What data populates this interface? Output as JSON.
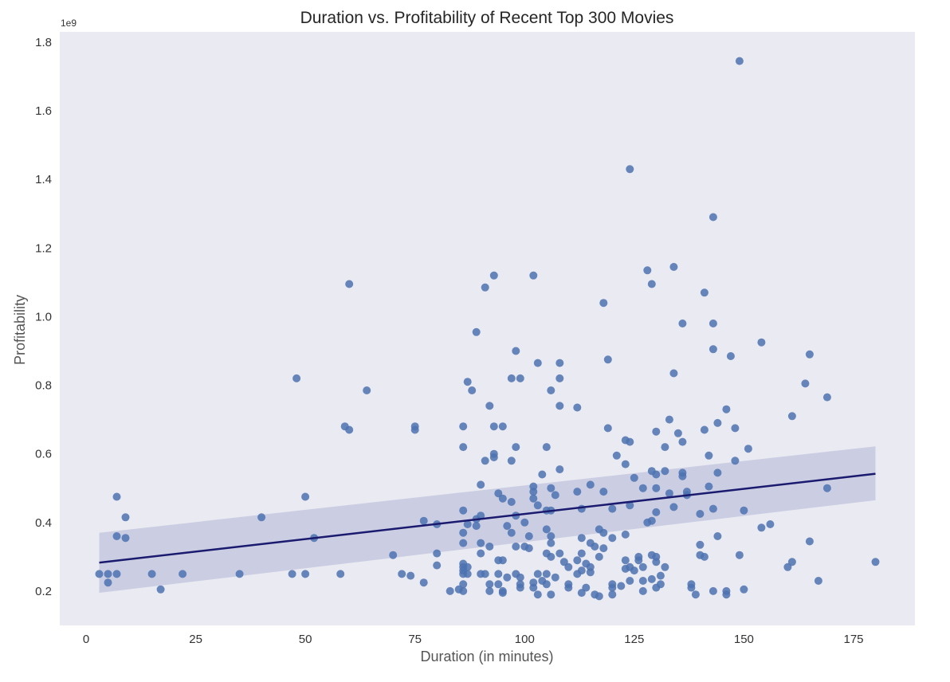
{
  "chart_data": {
    "type": "scatter",
    "title": "Duration vs. Profitability of Recent Top 300 Movies",
    "xlabel": "Duration (in minutes)",
    "ylabel": "Profitability",
    "y_offset_label": "1e9",
    "xlim": [
      -6,
      189
    ],
    "ylim": [
      0.1,
      1.83
    ],
    "x_ticks": [
      0,
      25,
      50,
      75,
      100,
      125,
      150,
      175
    ],
    "x_tick_labels": [
      "0",
      "25",
      "50",
      "75",
      "100",
      "125",
      "150",
      "175"
    ],
    "y_ticks": [
      0.2,
      0.4,
      0.6,
      0.8,
      1.0,
      1.2,
      1.4,
      1.6,
      1.8
    ],
    "y_tick_labels": [
      "0.2",
      "0.4",
      "0.6",
      "0.8",
      "1.0",
      "1.2",
      "1.4",
      "1.6",
      "1.8"
    ],
    "grid": false,
    "colors": {
      "background": "#eaeaf2",
      "points": "#4c72b0",
      "regression_line": "#1a1a6e",
      "confidence_band": "#c5c8e0"
    },
    "regression": {
      "x": [
        3,
        180
      ],
      "y": [
        0.283,
        0.542
      ],
      "ci_lower": [
        0.195,
        0.465
      ],
      "ci_upper": [
        0.37,
        0.622
      ]
    },
    "series": [
      {
        "points": [
          [
            3,
            0.25
          ],
          [
            5,
            0.25
          ],
          [
            5,
            0.225
          ],
          [
            7,
            0.25
          ],
          [
            7,
            0.36
          ],
          [
            7,
            0.475
          ],
          [
            9,
            0.355
          ],
          [
            9,
            0.415
          ],
          [
            15,
            0.25
          ],
          [
            17,
            0.205
          ],
          [
            22,
            0.25
          ],
          [
            35,
            0.25
          ],
          [
            40,
            0.415
          ],
          [
            47,
            0.25
          ],
          [
            48,
            0.82
          ],
          [
            50,
            0.25
          ],
          [
            50,
            0.475
          ],
          [
            52,
            0.355
          ],
          [
            58,
            0.25
          ],
          [
            59,
            0.68
          ],
          [
            60,
            0.67
          ],
          [
            60,
            1.095
          ],
          [
            64,
            0.785
          ],
          [
            70,
            0.305
          ],
          [
            72,
            0.25
          ],
          [
            74,
            0.245
          ],
          [
            75,
            0.67
          ],
          [
            75,
            0.68
          ],
          [
            77,
            0.225
          ],
          [
            77,
            0.405
          ],
          [
            80,
            0.31
          ],
          [
            80,
            0.275
          ],
          [
            80,
            0.395
          ],
          [
            83,
            0.2
          ],
          [
            85,
            0.205
          ],
          [
            86,
            0.2
          ],
          [
            86,
            0.22
          ],
          [
            86,
            0.25
          ],
          [
            86,
            0.26
          ],
          [
            86,
            0.27
          ],
          [
            86,
            0.28
          ],
          [
            86,
            0.34
          ],
          [
            86,
            0.37
          ],
          [
            86,
            0.435
          ],
          [
            86,
            0.62
          ],
          [
            86,
            0.68
          ],
          [
            87,
            0.81
          ],
          [
            87,
            0.25
          ],
          [
            87,
            0.27
          ],
          [
            87,
            0.395
          ],
          [
            88,
            0.785
          ],
          [
            89,
            0.955
          ],
          [
            89,
            0.39
          ],
          [
            89,
            0.41
          ],
          [
            90,
            0.25
          ],
          [
            90,
            0.31
          ],
          [
            90,
            0.34
          ],
          [
            90,
            0.42
          ],
          [
            90,
            0.51
          ],
          [
            91,
            0.58
          ],
          [
            91,
            1.085
          ],
          [
            91,
            0.25
          ],
          [
            92,
            0.2
          ],
          [
            92,
            0.33
          ],
          [
            92,
            0.22
          ],
          [
            92,
            0.74
          ],
          [
            93,
            0.68
          ],
          [
            93,
            0.6
          ],
          [
            93,
            0.59
          ],
          [
            93,
            1.12
          ],
          [
            94,
            0.25
          ],
          [
            94,
            0.22
          ],
          [
            94,
            0.29
          ],
          [
            94,
            0.485
          ],
          [
            95,
            0.195
          ],
          [
            95,
            0.2
          ],
          [
            95,
            0.68
          ],
          [
            95,
            0.47
          ],
          [
            95,
            0.29
          ],
          [
            96,
            0.24
          ],
          [
            96,
            0.39
          ],
          [
            97,
            0.82
          ],
          [
            97,
            0.58
          ],
          [
            97,
            0.46
          ],
          [
            97,
            0.37
          ],
          [
            98,
            0.9
          ],
          [
            98,
            0.62
          ],
          [
            98,
            0.42
          ],
          [
            98,
            0.33
          ],
          [
            98,
            0.25
          ],
          [
            99,
            0.82
          ],
          [
            99,
            0.22
          ],
          [
            99,
            0.21
          ],
          [
            99,
            0.24
          ],
          [
            100,
            0.4
          ],
          [
            100,
            0.33
          ],
          [
            101,
            0.36
          ],
          [
            101,
            0.325
          ],
          [
            102,
            0.505
          ],
          [
            102,
            0.47
          ],
          [
            102,
            0.49
          ],
          [
            102,
            1.12
          ],
          [
            102,
            0.21
          ],
          [
            102,
            0.225
          ],
          [
            103,
            0.865
          ],
          [
            103,
            0.45
          ],
          [
            103,
            0.25
          ],
          [
            103,
            0.19
          ],
          [
            104,
            0.54
          ],
          [
            104,
            0.23
          ],
          [
            105,
            0.62
          ],
          [
            105,
            0.435
          ],
          [
            105,
            0.38
          ],
          [
            105,
            0.31
          ],
          [
            105,
            0.22
          ],
          [
            105,
            0.25
          ],
          [
            106,
            0.785
          ],
          [
            106,
            0.5
          ],
          [
            106,
            0.435
          ],
          [
            106,
            0.36
          ],
          [
            106,
            0.34
          ],
          [
            106,
            0.3
          ],
          [
            106,
            0.19
          ],
          [
            107,
            0.24
          ],
          [
            107,
            0.48
          ],
          [
            108,
            0.865
          ],
          [
            108,
            0.82
          ],
          [
            108,
            0.74
          ],
          [
            108,
            0.555
          ],
          [
            108,
            0.31
          ],
          [
            109,
            0.285
          ],
          [
            110,
            0.22
          ],
          [
            110,
            0.21
          ],
          [
            110,
            0.27
          ],
          [
            112,
            0.735
          ],
          [
            112,
            0.49
          ],
          [
            112,
            0.29
          ],
          [
            112,
            0.25
          ],
          [
            113,
            0.44
          ],
          [
            113,
            0.355
          ],
          [
            113,
            0.31
          ],
          [
            113,
            0.26
          ],
          [
            113,
            0.195
          ],
          [
            114,
            0.28
          ],
          [
            114,
            0.21
          ],
          [
            115,
            0.51
          ],
          [
            115,
            0.34
          ],
          [
            115,
            0.27
          ],
          [
            115,
            0.255
          ],
          [
            116,
            0.33
          ],
          [
            116,
            0.19
          ],
          [
            117,
            0.38
          ],
          [
            117,
            0.3
          ],
          [
            117,
            0.185
          ],
          [
            118,
            1.04
          ],
          [
            118,
            0.49
          ],
          [
            118,
            0.37
          ],
          [
            118,
            0.325
          ],
          [
            119,
            0.875
          ],
          [
            119,
            0.675
          ],
          [
            120,
            0.44
          ],
          [
            120,
            0.355
          ],
          [
            120,
            0.22
          ],
          [
            120,
            0.21
          ],
          [
            120,
            0.19
          ],
          [
            121,
            0.595
          ],
          [
            122,
            0.215
          ],
          [
            123,
            0.64
          ],
          [
            123,
            0.57
          ],
          [
            123,
            0.365
          ],
          [
            123,
            0.29
          ],
          [
            123,
            0.265
          ],
          [
            124,
            1.43
          ],
          [
            124,
            0.635
          ],
          [
            124,
            0.45
          ],
          [
            124,
            0.27
          ],
          [
            124,
            0.23
          ],
          [
            125,
            0.53
          ],
          [
            125,
            0.26
          ],
          [
            126,
            0.3
          ],
          [
            126,
            0.29
          ],
          [
            127,
            0.5
          ],
          [
            127,
            0.27
          ],
          [
            127,
            0.23
          ],
          [
            127,
            0.2
          ],
          [
            128,
            1.135
          ],
          [
            128,
            0.4
          ],
          [
            129,
            1.095
          ],
          [
            129,
            0.55
          ],
          [
            129,
            0.405
          ],
          [
            129,
            0.305
          ],
          [
            129,
            0.235
          ],
          [
            130,
            0.665
          ],
          [
            130,
            0.54
          ],
          [
            130,
            0.5
          ],
          [
            130,
            0.43
          ],
          [
            130,
            0.3
          ],
          [
            130,
            0.285
          ],
          [
            130,
            0.21
          ],
          [
            131,
            0.245
          ],
          [
            131,
            0.22
          ],
          [
            132,
            0.62
          ],
          [
            132,
            0.55
          ],
          [
            132,
            0.27
          ],
          [
            133,
            0.7
          ],
          [
            133,
            0.485
          ],
          [
            134,
            1.145
          ],
          [
            134,
            0.835
          ],
          [
            134,
            0.445
          ],
          [
            135,
            0.66
          ],
          [
            136,
            0.98
          ],
          [
            136,
            0.635
          ],
          [
            136,
            0.545
          ],
          [
            136,
            0.535
          ],
          [
            137,
            0.49
          ],
          [
            137,
            0.48
          ],
          [
            138,
            0.22
          ],
          [
            138,
            0.21
          ],
          [
            139,
            0.19
          ],
          [
            140,
            0.425
          ],
          [
            140,
            0.335
          ],
          [
            140,
            0.305
          ],
          [
            141,
            1.07
          ],
          [
            141,
            0.67
          ],
          [
            141,
            0.3
          ],
          [
            142,
            0.595
          ],
          [
            142,
            0.505
          ],
          [
            143,
            1.29
          ],
          [
            143,
            0.98
          ],
          [
            143,
            0.905
          ],
          [
            143,
            0.44
          ],
          [
            143,
            0.2
          ],
          [
            144,
            0.69
          ],
          [
            144,
            0.545
          ],
          [
            144,
            0.36
          ],
          [
            146,
            0.73
          ],
          [
            146,
            0.2
          ],
          [
            146,
            0.19
          ],
          [
            147,
            0.885
          ],
          [
            148,
            0.675
          ],
          [
            148,
            0.58
          ],
          [
            149,
            1.745
          ],
          [
            149,
            0.305
          ],
          [
            150,
            0.435
          ],
          [
            150,
            0.205
          ],
          [
            151,
            0.615
          ],
          [
            154,
            0.925
          ],
          [
            154,
            0.385
          ],
          [
            156,
            0.395
          ],
          [
            160,
            0.27
          ],
          [
            161,
            0.71
          ],
          [
            161,
            0.285
          ],
          [
            164,
            0.805
          ],
          [
            165,
            0.89
          ],
          [
            165,
            0.345
          ],
          [
            167,
            0.23
          ],
          [
            169,
            0.765
          ],
          [
            169,
            0.5
          ],
          [
            180,
            0.285
          ]
        ]
      }
    ]
  }
}
